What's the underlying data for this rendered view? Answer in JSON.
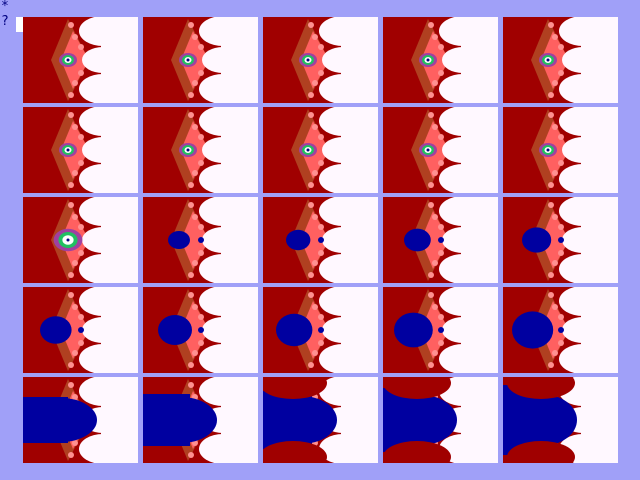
{
  "console": {
    "line1": "*",
    "line2": "?"
  }
}
